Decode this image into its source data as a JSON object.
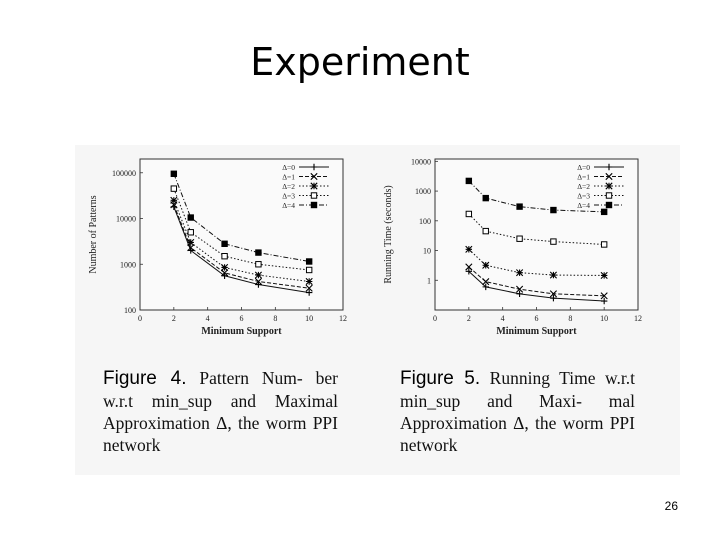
{
  "title": "Experiment",
  "page_number": "26",
  "figures": [
    {
      "label": "Figure 4.",
      "caption_lines": [
        "Pattern Num-",
        "ber w.r.t min_sup and",
        "Maximal Approximation",
        "Δ, the worm PPI network"
      ]
    },
    {
      "label": "Figure 5.",
      "caption_lines": [
        "Running Time",
        "w.r.t min_sup and Maxi-",
        "mal Approximation Δ, the",
        "worm PPI network"
      ]
    }
  ],
  "chart_data": [
    {
      "type": "line",
      "xlabel": "Minimum Support",
      "ylabel": "Number of Patterns",
      "log_y": true,
      "xlim": [
        0,
        12
      ],
      "ylim": [
        100,
        200000
      ],
      "x_ticks": [
        "0",
        "2",
        "4",
        "6",
        "8",
        "10",
        "12"
      ],
      "y_ticks": [
        "100",
        "1000",
        "10000",
        "100000"
      ],
      "y_tick_values": [
        100,
        1000,
        10000,
        100000
      ],
      "legend_position": "top-right",
      "x": [
        2,
        3,
        5,
        7,
        10
      ],
      "series": [
        {
          "name": "Δ=0",
          "marker": "plus",
          "dash": "solid",
          "values": [
            18000,
            2000,
            560,
            360,
            240
          ]
        },
        {
          "name": "Δ=1",
          "marker": "cross",
          "dash": "dashed",
          "values": [
            20000,
            2300,
            650,
            420,
            300
          ]
        },
        {
          "name": "Δ=2",
          "marker": "star",
          "dash": "dotted",
          "values": [
            25000,
            3000,
            850,
            580,
            420
          ]
        },
        {
          "name": "Δ=3",
          "marker": "open-square",
          "dash": "dotted",
          "values": [
            45000,
            5000,
            1500,
            1000,
            750
          ]
        },
        {
          "name": "Δ=4",
          "marker": "filled-square",
          "dash": "dashdot",
          "values": [
            95000,
            10500,
            2800,
            1800,
            1150
          ]
        }
      ]
    },
    {
      "type": "line",
      "xlabel": "Minimum Support",
      "ylabel": "Running Time (seconds)",
      "log_y": true,
      "xlim": [
        0,
        12
      ],
      "ylim": [
        0.1,
        12000
      ],
      "x_ticks": [
        "0",
        "2",
        "4",
        "6",
        "8",
        "10",
        "12"
      ],
      "y_ticks": [
        "1",
        "10",
        "100",
        "1000",
        "10000"
      ],
      "y_tick_values": [
        1,
        10,
        100,
        1000,
        10000
      ],
      "legend_position": "top-right",
      "x": [
        2,
        3,
        5,
        7,
        10
      ],
      "series": [
        {
          "name": "Δ=0",
          "marker": "plus",
          "dash": "solid",
          "values": [
            2,
            0.6,
            0.35,
            0.25,
            0.2
          ]
        },
        {
          "name": "Δ=1",
          "marker": "cross",
          "dash": "dashed",
          "values": [
            2.8,
            0.9,
            0.5,
            0.35,
            0.3
          ]
        },
        {
          "name": "Δ=2",
          "marker": "star",
          "dash": "dotted",
          "values": [
            11,
            3.2,
            1.8,
            1.5,
            1.45
          ]
        },
        {
          "name": "Δ=3",
          "marker": "open-square",
          "dash": "dotted",
          "values": [
            170,
            45,
            25,
            20,
            16
          ]
        },
        {
          "name": "Δ=4",
          "marker": "filled-square",
          "dash": "dashdot",
          "values": [
            2200,
            580,
            300,
            230,
            200
          ]
        }
      ]
    }
  ]
}
